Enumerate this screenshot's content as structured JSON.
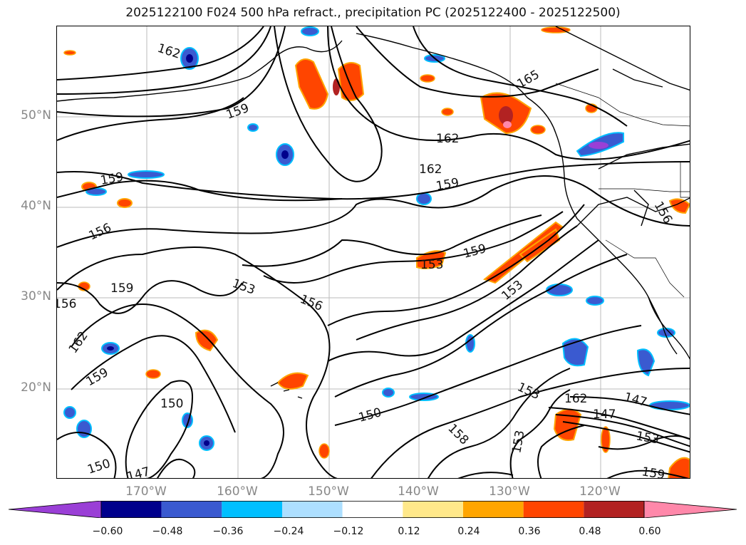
{
  "title": "2025122100 F024 500 hPa refract., precipitation PC (2025122400 - 2025122500)",
  "lat_labels": [
    "50°N",
    "40°N",
    "30°N",
    "20°N"
  ],
  "lon_labels": [
    "170°W",
    "160°W",
    "150°W",
    "140°W",
    "130°W",
    "120°W"
  ],
  "contour_labels": [
    "162",
    "159",
    "162",
    "165",
    "162",
    "159",
    "159",
    "156",
    "156",
    "159",
    "156",
    "153",
    "156",
    "153",
    "159",
    "153",
    "162",
    "159",
    "150",
    "150",
    "147",
    "150",
    "153",
    "162",
    "147",
    "147",
    "153",
    "158",
    "153",
    "159"
  ],
  "colorbar": {
    "colors": [
      "#9a3fd6",
      "#00008c",
      "#3a5ad0",
      "#00bfff",
      "#addfff",
      "#ffffff",
      "#ffe88a",
      "#ffa500",
      "#ff4500",
      "#b22222",
      "#ff88aa"
    ],
    "tick_labels": [
      "−0.60",
      "−0.48",
      "−0.36",
      "−0.24",
      "−0.12",
      "0.12",
      "0.24",
      "0.36",
      "0.48",
      "0.60"
    ]
  }
}
